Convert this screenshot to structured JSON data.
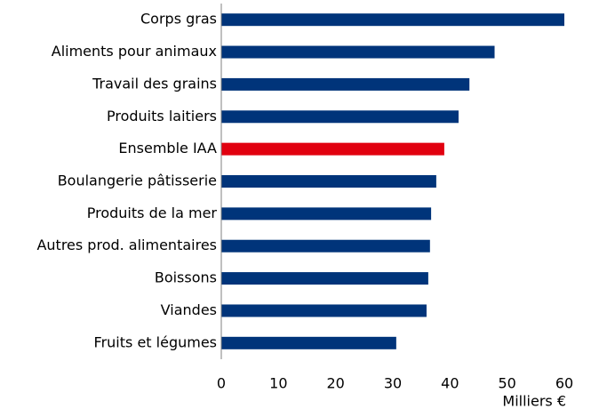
{
  "chart_data": {
    "type": "hbar",
    "categories": [
      "Corps gras",
      "Aliments pour animaux",
      "Travail des grains",
      "Produits laitiers",
      "Ensemble IAA",
      "Boulangerie pâtisserie",
      "Produits de la mer",
      "Autres prod. alimentaires",
      "Boissons",
      "Viandes",
      "Fruits et légumes"
    ],
    "values": [
      60,
      47.8,
      43.4,
      41.5,
      39.0,
      37.6,
      36.7,
      36.5,
      36.2,
      35.9,
      30.6
    ],
    "colors": [
      "#00347a",
      "#00347a",
      "#00347a",
      "#00347a",
      "#e1000f",
      "#00347a",
      "#00347a",
      "#00347a",
      "#00347a",
      "#00347a",
      "#00347a"
    ],
    "xlim": [
      0,
      60
    ],
    "xticks": [
      0,
      10,
      20,
      30,
      40,
      50,
      60
    ],
    "x_label": "Milliers €",
    "grid": false
  }
}
